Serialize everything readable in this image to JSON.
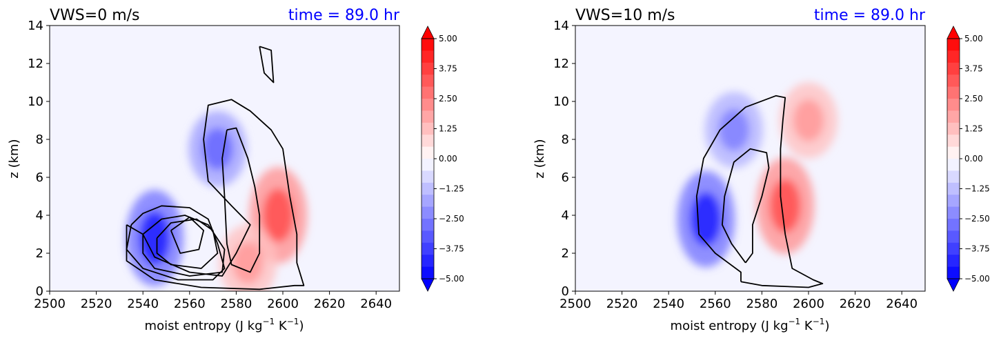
{
  "chart_data": [
    {
      "type": "contour",
      "title_left": "VWS=0 m/s",
      "title_right": "time = 89.0 hr",
      "xlabel": "moist entropy (J kg",
      "xlabel_sup1": "−1",
      "xlabel_mid": " K",
      "xlabel_sup2": "−1",
      "xlabel_end": ")",
      "ylabel": "z (km)",
      "xlim": [
        2500,
        2650
      ],
      "ylim": [
        0,
        14
      ],
      "xticks": [
        "2500",
        "2520",
        "2540",
        "2560",
        "2580",
        "2600",
        "2620",
        "2640"
      ],
      "xtick_values": [
        2500,
        2520,
        2540,
        2560,
        2580,
        2600,
        2620,
        2640
      ],
      "yticks": [
        "0",
        "2",
        "4",
        "6",
        "8",
        "10",
        "12",
        "14"
      ],
      "ytick_values": [
        0,
        2,
        4,
        6,
        8,
        10,
        12,
        14
      ],
      "colorbar": {
        "range": [
          -5,
          5
        ],
        "ticks": [
          "5.00",
          "3.75",
          "2.50",
          "1.25",
          "0.00",
          "−1.25",
          "−2.50",
          "−3.75",
          "−5.00"
        ],
        "tick_values": [
          5,
          3.75,
          2.5,
          1.25,
          0,
          -1.25,
          -2.5,
          -3.75,
          -5
        ],
        "levels": 20,
        "colormap": "bwr",
        "extend": "both"
      },
      "filled_regions": [
        {
          "sign": "negative",
          "peak": -4.5,
          "center": [
            2545,
            2.8
          ]
        },
        {
          "sign": "negative",
          "peak": -3.0,
          "center": [
            2572,
            7.5
          ]
        },
        {
          "sign": "positive",
          "peak": 3.5,
          "center": [
            2598,
            4.0
          ]
        },
        {
          "sign": "positive",
          "peak": 2.0,
          "center": [
            2585,
            1.5
          ]
        }
      ],
      "contour_lines": [
        [
          [
            2535,
            3.5
          ],
          [
            2540,
            4.1
          ],
          [
            2548,
            4.5
          ],
          [
            2560,
            4.4
          ],
          [
            2568,
            3.8
          ],
          [
            2572,
            2.5
          ],
          [
            2575,
            1.2
          ],
          [
            2570,
            0.6
          ],
          [
            2555,
            0.6
          ],
          [
            2540,
            1.2
          ],
          [
            2533,
            2.2
          ],
          [
            2535,
            3.5
          ]
        ],
        [
          [
            2540,
            3.0
          ],
          [
            2548,
            3.8
          ],
          [
            2558,
            4.0
          ],
          [
            2568,
            3.5
          ],
          [
            2575,
            2.2
          ],
          [
            2574,
            1.0
          ],
          [
            2560,
            0.8
          ],
          [
            2545,
            1.2
          ],
          [
            2540,
            2.0
          ],
          [
            2540,
            3.0
          ]
        ],
        [
          [
            2546,
            2.8
          ],
          [
            2552,
            3.6
          ],
          [
            2563,
            3.8
          ],
          [
            2570,
            3.2
          ],
          [
            2572,
            2.0
          ],
          [
            2565,
            1.2
          ],
          [
            2552,
            1.4
          ],
          [
            2546,
            2.0
          ],
          [
            2546,
            2.8
          ]
        ],
        [
          [
            2552,
            3.2
          ],
          [
            2560,
            3.9
          ],
          [
            2566,
            3.2
          ],
          [
            2564,
            2.2
          ],
          [
            2556,
            2.0
          ],
          [
            2552,
            3.2
          ]
        ],
        [
          [
            2533,
            3.5
          ],
          [
            2533,
            1.6
          ],
          [
            2545,
            0.6
          ],
          [
            2565,
            0.2
          ],
          [
            2590,
            0.1
          ],
          [
            2605,
            0.3
          ],
          [
            2609,
            0.3
          ],
          [
            2606,
            1.5
          ],
          [
            2606,
            3.0
          ],
          [
            2603,
            5.0
          ],
          [
            2600,
            7.5
          ],
          [
            2595,
            8.5
          ],
          [
            2586,
            9.5
          ],
          [
            2578,
            10.1
          ],
          [
            2568,
            9.8
          ],
          [
            2566,
            8.0
          ],
          [
            2568,
            5.8
          ],
          [
            2578,
            4.5
          ],
          [
            2586,
            3.5
          ],
          [
            2580,
            2.0
          ],
          [
            2574,
            0.8
          ],
          [
            2560,
            1.0
          ],
          [
            2545,
            1.8
          ],
          [
            2540,
            3.0
          ],
          [
            2533,
            3.5
          ]
        ],
        [
          [
            2590,
            12.9
          ],
          [
            2595,
            12.7
          ],
          [
            2596,
            11.0
          ],
          [
            2592,
            11.5
          ],
          [
            2590,
            12.9
          ]
        ],
        [
          [
            2576,
            8.5
          ],
          [
            2580,
            8.6
          ],
          [
            2585,
            7.0
          ],
          [
            2588,
            5.5
          ],
          [
            2590,
            4.0
          ],
          [
            2590,
            2.0
          ],
          [
            2586,
            1.0
          ],
          [
            2578,
            1.4
          ],
          [
            2576,
            2.5
          ],
          [
            2575,
            5.0
          ],
          [
            2574,
            7.0
          ],
          [
            2576,
            8.5
          ]
        ]
      ]
    },
    {
      "type": "contour",
      "title_left": "VWS=10 m/s",
      "title_right": "time = 89.0 hr",
      "xlabel": "moist entropy (J kg",
      "xlabel_sup1": "−1",
      "xlabel_mid": " K",
      "xlabel_sup2": "−1",
      "xlabel_end": ")",
      "ylabel": "z (km)",
      "xlim": [
        2500,
        2650
      ],
      "ylim": [
        0,
        14
      ],
      "xticks": [
        "2500",
        "2520",
        "2540",
        "2560",
        "2580",
        "2600",
        "2620",
        "2640"
      ],
      "xtick_values": [
        2500,
        2520,
        2540,
        2560,
        2580,
        2600,
        2620,
        2640
      ],
      "yticks": [
        "0",
        "2",
        "4",
        "6",
        "8",
        "10",
        "12",
        "14"
      ],
      "ytick_values": [
        0,
        2,
        4,
        6,
        8,
        10,
        12,
        14
      ],
      "colorbar": {
        "range": [
          -5,
          5
        ],
        "ticks": [
          "5.00",
          "3.75",
          "2.50",
          "1.25",
          "0.00",
          "−1.25",
          "−2.50",
          "−3.75",
          "−5.00"
        ],
        "tick_values": [
          5,
          3.75,
          2.5,
          1.25,
          0,
          -1.25,
          -2.5,
          -3.75,
          -5
        ],
        "levels": 20,
        "colormap": "bwr",
        "extend": "both"
      },
      "filled_regions": [
        {
          "sign": "negative",
          "peak": -4.5,
          "center": [
            2556,
            3.8
          ]
        },
        {
          "sign": "negative",
          "peak": -2.5,
          "center": [
            2568,
            8.5
          ]
        },
        {
          "sign": "positive",
          "peak": 3.5,
          "center": [
            2590,
            4.5
          ]
        },
        {
          "sign": "positive",
          "peak": 2.0,
          "center": [
            2600,
            9.0
          ]
        }
      ],
      "contour_lines": [
        [
          [
            2571,
            0.5
          ],
          [
            2571,
            1.0
          ],
          [
            2560,
            2.0
          ],
          [
            2553,
            3.0
          ],
          [
            2552,
            5.0
          ],
          [
            2555,
            7.0
          ],
          [
            2562,
            8.5
          ],
          [
            2573,
            9.7
          ],
          [
            2586,
            10.3
          ],
          [
            2590,
            10.2
          ],
          [
            2589,
            9.0
          ],
          [
            2588,
            7.5
          ],
          [
            2588,
            5.0
          ],
          [
            2590,
            3.0
          ],
          [
            2593,
            1.2
          ],
          [
            2602,
            0.6
          ],
          [
            2606,
            0.4
          ],
          [
            2600,
            0.2
          ],
          [
            2580,
            0.3
          ],
          [
            2571,
            0.5
          ]
        ],
        [
          [
            2573,
            1.5
          ],
          [
            2567,
            2.5
          ],
          [
            2563,
            3.5
          ],
          [
            2564,
            5.0
          ],
          [
            2568,
            6.8
          ],
          [
            2575,
            7.5
          ],
          [
            2582,
            7.3
          ],
          [
            2583,
            6.5
          ],
          [
            2580,
            5.0
          ],
          [
            2576,
            3.5
          ],
          [
            2576,
            2.0
          ],
          [
            2573,
            1.5
          ]
        ]
      ]
    }
  ]
}
